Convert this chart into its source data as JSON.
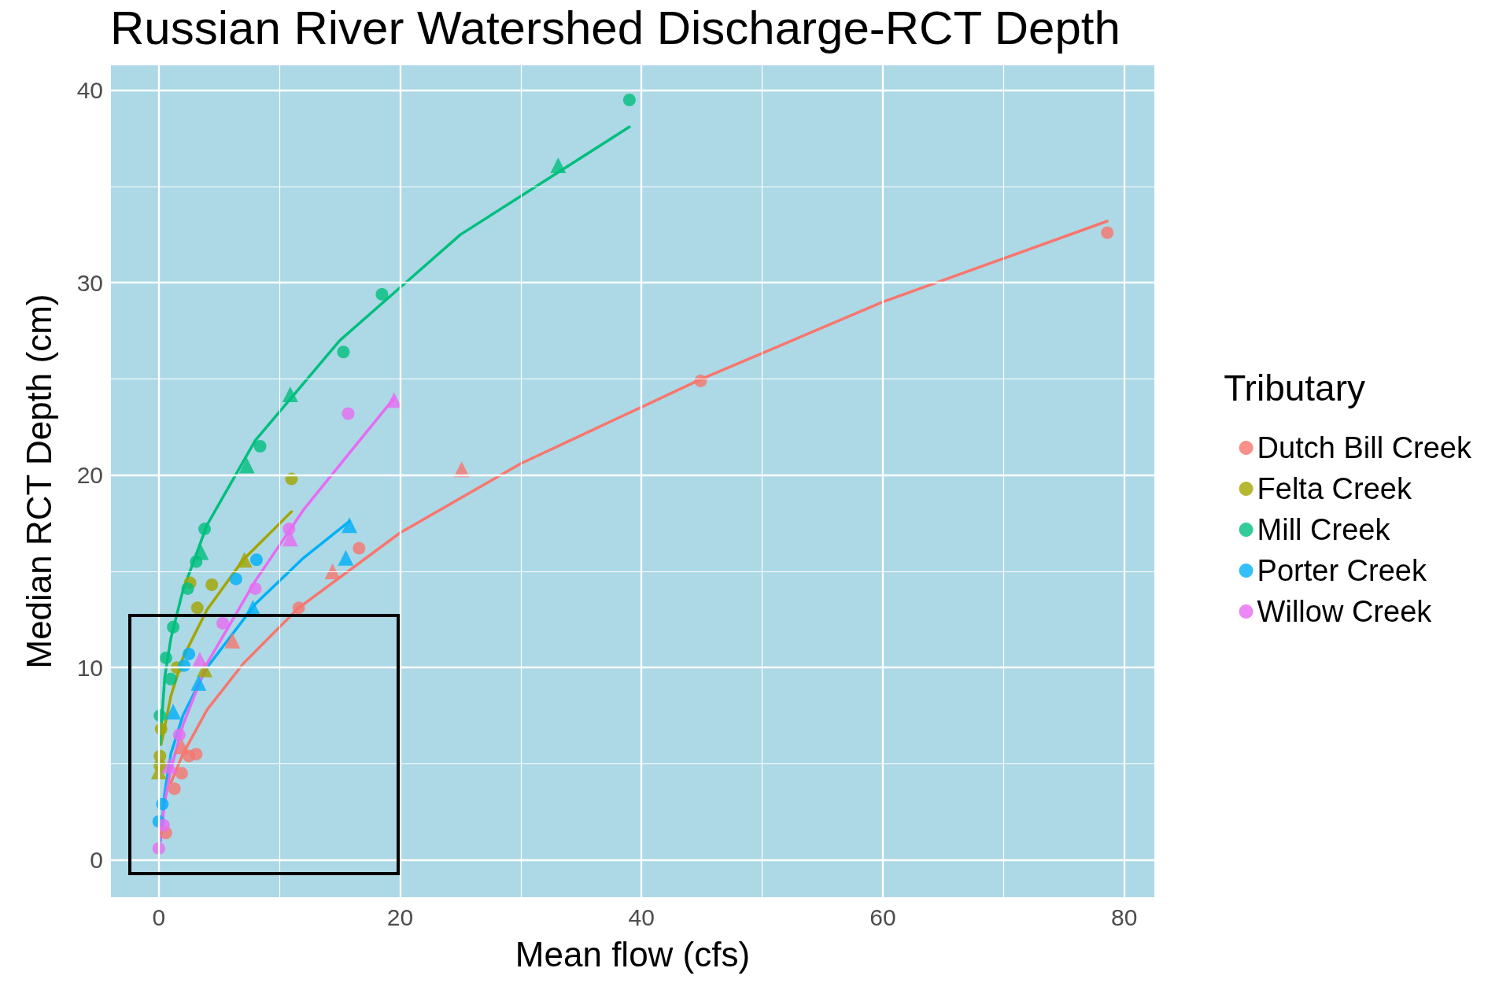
{
  "chart_data": {
    "type": "scatter",
    "title": "Russian River Watershed Discharge-RCT Depth",
    "xlabel": "Mean flow (cfs)",
    "ylabel": "Median RCT Depth (cm)",
    "legend_title": "Tributary",
    "legend": "right",
    "grid": true,
    "marker": "circle",
    "xlim": [
      -3.96,
      82.5
    ],
    "ylim": [
      -1.94,
      41.3
    ],
    "xticks": [
      0,
      {
        "value": 10,
        "label": null
      },
      20,
      {
        "value": 30,
        "label": null
      },
      40,
      {
        "value": 50,
        "label": null
      },
      60,
      {
        "value": 70,
        "label": null
      },
      80
    ],
    "yticks": [
      0,
      {
        "value": 5,
        "label": null
      },
      10,
      {
        "value": 15,
        "label": null
      },
      20,
      {
        "value": 25,
        "label": null
      },
      30,
      {
        "value": 35,
        "label": null
      },
      40
    ],
    "series": [
      {
        "name": "Dutch Bill Creek",
        "color": "#f8766d",
        "x": [
          78.6,
          44.9,
          16.6,
          11.6,
          3.1,
          2.5,
          1.9,
          1.3,
          0.6
        ],
        "values": [
          32.6,
          24.9,
          16.2,
          13.1,
          5.5,
          5.4,
          4.5,
          3.7,
          1.4
        ]
      },
      {
        "name": "Felta Creek",
        "color": "#a3a500",
        "x": [
          11.0,
          4.4,
          2.6,
          3.2,
          1.5,
          0.2,
          0.1,
          0.1
        ],
        "values": [
          19.8,
          14.3,
          14.4,
          13.1,
          10.0,
          6.8,
          5.4,
          4.9
        ]
      },
      {
        "name": "Mill Creek",
        "color": "#00bf7d",
        "x": [
          39.0,
          18.5,
          15.3,
          8.4,
          3.8,
          3.1,
          2.4,
          1.2,
          0.6,
          0.1,
          1.0
        ],
        "values": [
          39.5,
          29.4,
          26.4,
          21.5,
          17.2,
          15.5,
          14.1,
          12.1,
          10.5,
          7.5,
          9.4
        ]
      },
      {
        "name": "Porter Creek",
        "color": "#00b0f6",
        "x": [
          8.1,
          6.4,
          2.5,
          2.1,
          0.3,
          0.0
        ],
        "values": [
          15.6,
          14.6,
          10.7,
          10.1,
          2.9,
          2.0
        ]
      },
      {
        "name": "Willow Creek",
        "color": "#e76bf3",
        "x": [
          15.7,
          10.8,
          8.0,
          5.3,
          1.7,
          0.4,
          0.0
        ],
        "values": [
          23.2,
          17.2,
          14.1,
          12.3,
          6.5,
          1.8,
          0.6
        ]
      },
      {
        "color": "#f8766d",
        "marker": "triangle",
        "x": [
          25.1,
          14.4,
          6.1,
          1.9
        ],
        "values": [
          20.3,
          15.0,
          11.4,
          5.9
        ]
      },
      {
        "color": "#a3a500",
        "marker": "triangle",
        "x": [
          7.1,
          3.8,
          0.0
        ],
        "values": [
          15.6,
          9.9,
          4.6
        ]
      },
      {
        "color": "#00bf7d",
        "marker": "triangle",
        "x": [
          33.1,
          10.9,
          7.3,
          3.5
        ],
        "values": [
          36.1,
          24.2,
          20.5,
          16.0
        ]
      },
      {
        "color": "#00b0f6",
        "marker": "triangle",
        "x": [
          15.8,
          15.5,
          7.8,
          3.3,
          1.2
        ],
        "values": [
          17.4,
          15.7,
          13.1,
          9.2,
          7.7
        ]
      },
      {
        "color": "#e76bf3",
        "marker": "triangle",
        "x": [
          19.5,
          10.9,
          3.4,
          0.9
        ],
        "values": [
          23.9,
          16.7,
          10.4,
          4.9
        ]
      },
      {
        "type": "line",
        "marker": "none",
        "color": "#f8766d",
        "x": [
          1,
          2,
          4,
          7,
          11.6,
          20,
          30,
          45,
          60,
          78.6
        ],
        "values": [
          4.0,
          5.5,
          7.8,
          10.2,
          13.1,
          17.0,
          20.6,
          25.0,
          29.0,
          33.2
        ]
      },
      {
        "type": "line",
        "marker": "none",
        "color": "#a3a500",
        "x": [
          0.2,
          1,
          2,
          4,
          7,
          11
        ],
        "values": [
          6.0,
          8.5,
          10.5,
          13.0,
          15.6,
          18.1
        ]
      },
      {
        "type": "line",
        "marker": "none",
        "color": "#00bf7d",
        "x": [
          0.1,
          0.5,
          1,
          2,
          4,
          8,
          15,
          25,
          39
        ],
        "values": [
          6.0,
          9.5,
          11.5,
          14.0,
          17.4,
          21.8,
          27.0,
          32.5,
          38.1
        ]
      },
      {
        "type": "line",
        "marker": "none",
        "color": "#00b0f6",
        "x": [
          0.15,
          0.5,
          1,
          2,
          4,
          8,
          12,
          15.8
        ],
        "values": [
          1.0,
          3.5,
          5.5,
          7.5,
          10.0,
          13.3,
          15.7,
          17.6
        ]
      },
      {
        "type": "line",
        "marker": "none",
        "color": "#e76bf3",
        "x": [
          0.1,
          0.5,
          1,
          2,
          4,
          8,
          12,
          16,
          19.5
        ],
        "values": [
          1.0,
          3.0,
          4.7,
          7.0,
          10.2,
          14.5,
          18.2,
          21.3,
          24.0
        ]
      }
    ]
  }
}
